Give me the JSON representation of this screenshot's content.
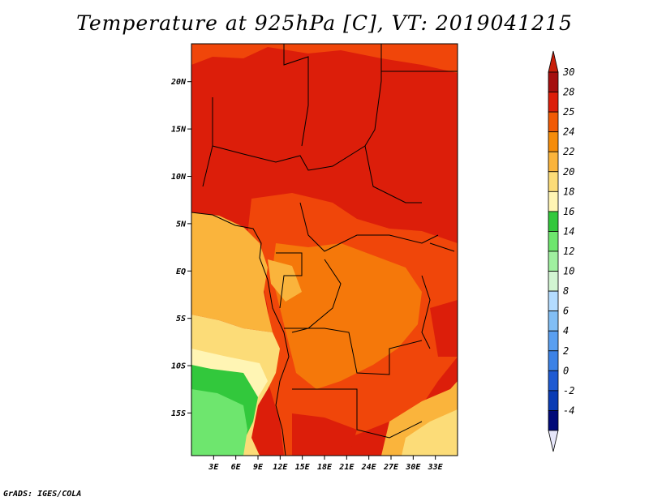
{
  "title": "Temperature at 925hPa [C], VT: 2019041215",
  "footer": "GrADS: IGES/COLA",
  "map": {
    "lon_range": [
      0,
      36
    ],
    "lat_range": [
      -19.5,
      24
    ],
    "lat_ticks": [
      {
        "value": 20,
        "label": "20N"
      },
      {
        "value": 15,
        "label": "15N"
      },
      {
        "value": 10,
        "label": "10N"
      },
      {
        "value": 5,
        "label": "5N"
      },
      {
        "value": 0,
        "label": "EQ"
      },
      {
        "value": -5,
        "label": "5S"
      },
      {
        "value": -10,
        "label": "10S"
      },
      {
        "value": -15,
        "label": "15S"
      }
    ],
    "lon_ticks": [
      {
        "value": 3,
        "label": "3E"
      },
      {
        "value": 6,
        "label": "6E"
      },
      {
        "value": 9,
        "label": "9E"
      },
      {
        "value": 12,
        "label": "12E"
      },
      {
        "value": 15,
        "label": "15E"
      },
      {
        "value": 18,
        "label": "18E"
      },
      {
        "value": 21,
        "label": "21E"
      },
      {
        "value": 24,
        "label": "24E"
      },
      {
        "value": 27,
        "label": "27E"
      },
      {
        "value": 30,
        "label": "30E"
      },
      {
        "value": 33,
        "label": "33E"
      }
    ]
  },
  "colorbar": {
    "levels": [
      {
        "label": "30",
        "color": "#a50f0f"
      },
      {
        "label": "28",
        "color": "#dc1e0a"
      },
      {
        "label": "25",
        "color": "#f05a05"
      },
      {
        "label": "24",
        "color": "#f58c0a"
      },
      {
        "label": "22",
        "color": "#fab43c"
      },
      {
        "label": "20",
        "color": "#fcdc78"
      },
      {
        "label": "18",
        "color": "#fff5b4"
      },
      {
        "label": "16",
        "color": "#32c83c"
      },
      {
        "label": "14",
        "color": "#6ee66e"
      },
      {
        "label": "12",
        "color": "#a0f0a0"
      },
      {
        "label": "10",
        "color": "#d2f5d2"
      },
      {
        "label": "8",
        "color": "#b4dcff"
      },
      {
        "label": "6",
        "color": "#82bef5"
      },
      {
        "label": "4",
        "color": "#5a9ff0"
      },
      {
        "label": "2",
        "color": "#3c82e6"
      },
      {
        "label": "0",
        "color": "#1e5ad2"
      },
      {
        "label": "-2",
        "color": "#0a3cb4"
      },
      {
        "label": "-4",
        "color": "#000a78"
      }
    ],
    "top_triangle_color": "#c81e0a",
    "bottom_triangle_color": "#e6e6fa"
  },
  "colors": {
    "red": "#dc1e0a",
    "red_orange": "#f0460a",
    "orange": "#f5780a",
    "amber": "#fab43c",
    "light_yellow": "#fcdc78",
    "pale_yellow": "#fff5b4",
    "green": "#32c83c",
    "light_green": "#6ee66e"
  }
}
